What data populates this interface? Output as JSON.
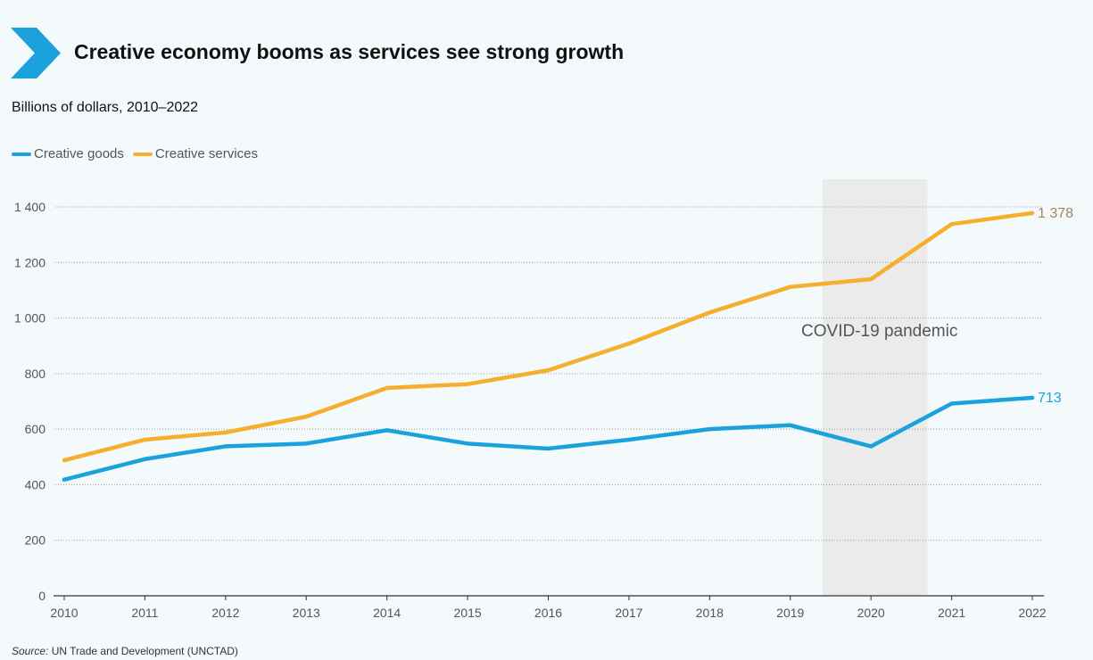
{
  "header": {
    "title": "Creative economy booms as services see strong growth",
    "subtitle": "Billions of dollars, 2010–2022"
  },
  "footer": {
    "source_label": "Source:",
    "source_text": "UN Trade and Development (UNCTAD)"
  },
  "colors": {
    "goods": "#1ba1dc",
    "services": "#f6ae2d",
    "services_label": "#a1865f",
    "shade": "#ebebeb",
    "chevron": "#1ba1dc"
  },
  "chart_data": {
    "type": "line",
    "title": "Creative economy booms as services see strong growth",
    "subtitle": "Billions of dollars, 2010–2022",
    "xlabel": "",
    "ylabel": "",
    "x": [
      2010,
      2011,
      2012,
      2013,
      2014,
      2015,
      2016,
      2017,
      2018,
      2019,
      2020,
      2021,
      2022
    ],
    "x_tick_labels": [
      "2010",
      "2011",
      "2012",
      "2013",
      "2014",
      "2015",
      "2016",
      "2017",
      "2018",
      "2019",
      "2020",
      "2021",
      "2022"
    ],
    "ylim": [
      0,
      1400
    ],
    "y_ticks": [
      0,
      200,
      400,
      600,
      800,
      1000,
      1200,
      1400
    ],
    "y_tick_labels": [
      "0",
      "200",
      "400",
      "600",
      "800",
      "1 000",
      "1 200",
      "1 400"
    ],
    "grid": "horizontal dotted",
    "legend_position": "top-left",
    "series": [
      {
        "name": "Creative goods",
        "values": [
          418,
          492,
          538,
          548,
          596,
          548,
          530,
          562,
          600,
          614,
          538,
          692,
          713
        ],
        "end_label": "713"
      },
      {
        "name": "Creative services",
        "values": [
          488,
          562,
          588,
          645,
          748,
          762,
          812,
          908,
          1020,
          1112,
          1140,
          1338,
          1378
        ],
        "end_label": "1 378"
      }
    ],
    "annotations": [
      {
        "text": "COVID-19 pandemic",
        "x_range": [
          2019.4,
          2020.7
        ]
      }
    ]
  }
}
